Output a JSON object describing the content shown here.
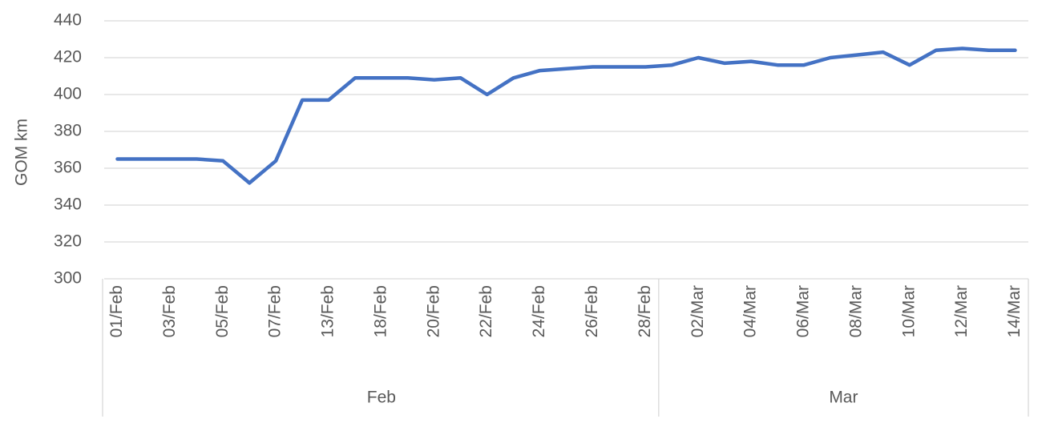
{
  "chart_data": {
    "type": "line",
    "y_label": "GOM km",
    "categories": [
      "01/Feb",
      null,
      "03/Feb",
      null,
      "05/Feb",
      null,
      "07/Feb",
      null,
      "13/Feb",
      null,
      "18/Feb",
      null,
      "20/Feb",
      null,
      "22/Feb",
      null,
      "24/Feb",
      null,
      "26/Feb",
      null,
      "28/Feb",
      null,
      "02/Mar",
      null,
      "04/Mar",
      null,
      "06/Mar",
      null,
      "08/Mar",
      null,
      "10/Mar",
      null,
      "12/Mar",
      null,
      "14/Mar"
    ],
    "x_groups": [
      {
        "label": "Feb",
        "size": 21
      },
      {
        "label": "Mar",
        "size": 14
      }
    ],
    "series": [
      {
        "name": "GOM km",
        "color": "#4472c4",
        "values": [
          365,
          365,
          365,
          365,
          364,
          352,
          364,
          397,
          397,
          409,
          409,
          409,
          408,
          409,
          400,
          409,
          413,
          414,
          415,
          415,
          415,
          416,
          420,
          417,
          418,
          416,
          416,
          420,
          421.5,
          423,
          416,
          424,
          425,
          424,
          424
        ]
      }
    ],
    "ylim": [
      300,
      440
    ],
    "yticks": [
      300,
      320,
      340,
      360,
      380,
      400,
      420,
      440
    ],
    "grid": true
  }
}
